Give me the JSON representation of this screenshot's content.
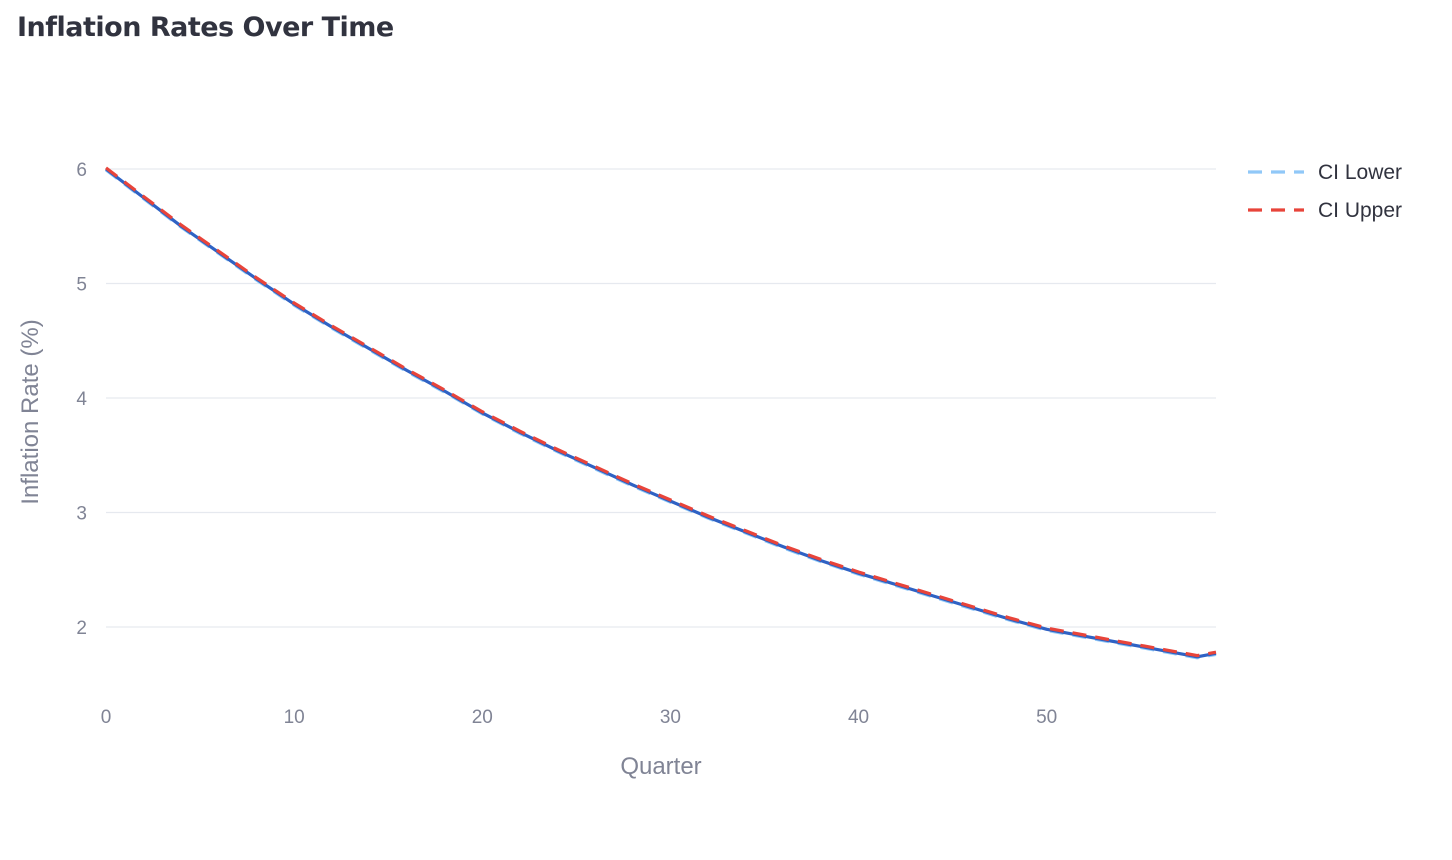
{
  "title": "Inflation Rates Over Time",
  "colors": {
    "main": "#2f62c4",
    "ci_lower": "#90c8f8",
    "ci_upper": "#e8443a",
    "grid": "#e6e9ef",
    "text_muted": "#808495",
    "text_dark": "#31333f"
  },
  "chart_data": {
    "type": "line",
    "title": "Inflation Rates Over Time",
    "xlabel": "Quarter",
    "ylabel": "Inflation Rate (%)",
    "xlim": [
      0,
      59
    ],
    "ylim": [
      1.5,
      6.2
    ],
    "x_ticks": [
      0,
      10,
      20,
      30,
      40,
      50
    ],
    "y_ticks": [
      2,
      3,
      4,
      5,
      6
    ],
    "grid": true,
    "legend_position": "top-right",
    "x": [
      0,
      2,
      4,
      6,
      8,
      10,
      12,
      14,
      16,
      18,
      20,
      22,
      24,
      26,
      28,
      30,
      32,
      34,
      36,
      38,
      40,
      42,
      44,
      46,
      48,
      50,
      52,
      54,
      56,
      58,
      59
    ],
    "series": [
      {
        "key": "main",
        "values": [
          6.0,
          5.75,
          5.5,
          5.27,
          5.04,
          4.82,
          4.62,
          4.43,
          4.24,
          4.06,
          3.87,
          3.7,
          3.54,
          3.39,
          3.24,
          3.1,
          2.96,
          2.83,
          2.7,
          2.58,
          2.47,
          2.37,
          2.27,
          2.17,
          2.07,
          1.98,
          1.92,
          1.86,
          1.8,
          1.74,
          1.77
        ]
      },
      {
        "name": "CI Lower",
        "values": [
          5.99,
          5.74,
          5.49,
          5.26,
          5.03,
          4.81,
          4.61,
          4.42,
          4.23,
          4.05,
          3.86,
          3.69,
          3.53,
          3.38,
          3.23,
          3.09,
          2.95,
          2.82,
          2.69,
          2.57,
          2.46,
          2.36,
          2.26,
          2.16,
          2.06,
          1.97,
          1.91,
          1.85,
          1.79,
          1.73,
          1.76
        ]
      },
      {
        "name": "CI Upper",
        "values": [
          6.01,
          5.76,
          5.51,
          5.28,
          5.05,
          4.83,
          4.63,
          4.44,
          4.25,
          4.07,
          3.88,
          3.71,
          3.55,
          3.4,
          3.25,
          3.11,
          2.97,
          2.84,
          2.71,
          2.59,
          2.48,
          2.38,
          2.28,
          2.18,
          2.08,
          1.99,
          1.93,
          1.87,
          1.81,
          1.75,
          1.78
        ]
      }
    ]
  }
}
